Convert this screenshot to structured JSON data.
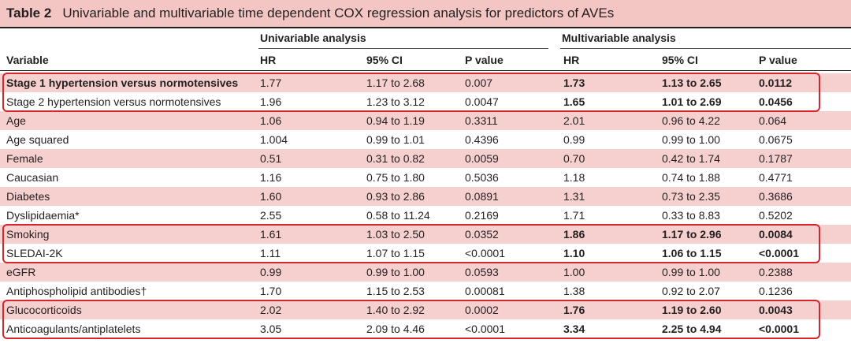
{
  "table": {
    "number": "Table 2",
    "caption": "Univariable and multivariable time dependent COX regression analysis for predictors of AVEs",
    "group_headers": {
      "univariable": "Univariable analysis",
      "multivariable": "Multivariable analysis"
    },
    "col_headers": {
      "variable": "Variable",
      "hr": "HR",
      "ci": "95% CI",
      "p": "P value"
    },
    "rows": [
      {
        "variable": "Stage 1 hypertension versus normotensives",
        "u_hr": "1.77",
        "u_ci": "1.17 to 2.68",
        "u_p": "0.007",
        "m_hr": "1.73",
        "m_ci": "1.13 to 2.65",
        "m_p": "0.0112",
        "bold_var": true,
        "bold_multi": true
      },
      {
        "variable": "Stage 2 hypertension versus normotensives",
        "u_hr": "1.96",
        "u_ci": "1.23 to 3.12",
        "u_p": "0.0047",
        "m_hr": "1.65",
        "m_ci": "1.01 to 2.69",
        "m_p": "0.0456",
        "bold_var": false,
        "bold_multi": true
      },
      {
        "variable": "Age",
        "u_hr": "1.06",
        "u_ci": "0.94 to 1.19",
        "u_p": "0.3311",
        "m_hr": "2.01",
        "m_ci": "0.96 to 4.22",
        "m_p": "0.064",
        "bold_var": false,
        "bold_multi": false
      },
      {
        "variable": "Age squared",
        "u_hr": "1.004",
        "u_ci": "0.99 to 1.01",
        "u_p": "0.4396",
        "m_hr": "0.99",
        "m_ci": "0.99 to 1.00",
        "m_p": "0.0675",
        "bold_var": false,
        "bold_multi": false
      },
      {
        "variable": "Female",
        "u_hr": "0.51",
        "u_ci": "0.31 to 0.82",
        "u_p": "0.0059",
        "m_hr": "0.70",
        "m_ci": "0.42 to 1.74",
        "m_p": "0.1787",
        "bold_var": false,
        "bold_multi": false
      },
      {
        "variable": "Caucasian",
        "u_hr": "1.16",
        "u_ci": "0.75 to 1.80",
        "u_p": "0.5036",
        "m_hr": "1.18",
        "m_ci": "0.74 to 1.88",
        "m_p": "0.4771",
        "bold_var": false,
        "bold_multi": false
      },
      {
        "variable": "Diabetes",
        "u_hr": "1.60",
        "u_ci": "0.93 to 2.86",
        "u_p": "0.0891",
        "m_hr": "1.31",
        "m_ci": "0.73 to 2.35",
        "m_p": "0.3686",
        "bold_var": false,
        "bold_multi": false
      },
      {
        "variable": "Dyslipidaemia*",
        "u_hr": "2.55",
        "u_ci": "0.58 to 11.24",
        "u_p": "0.2169",
        "m_hr": "1.71",
        "m_ci": "0.33 to 8.83",
        "m_p": "0.5202",
        "bold_var": false,
        "bold_multi": false
      },
      {
        "variable": "Smoking",
        "u_hr": "1.61",
        "u_ci": "1.03 to 2.50",
        "u_p": "0.0352",
        "m_hr": "1.86",
        "m_ci": "1.17 to 2.96",
        "m_p": "0.0084",
        "bold_var": false,
        "bold_multi": true
      },
      {
        "variable": "SLEDAI-2K",
        "u_hr": "1.11",
        "u_ci": "1.07 to 1.15",
        "u_p": "<0.0001",
        "m_hr": "1.10",
        "m_ci": "1.06 to 1.15",
        "m_p": "<0.0001",
        "bold_var": false,
        "bold_multi": true
      },
      {
        "variable": "eGFR",
        "u_hr": "0.99",
        "u_ci": "0.99 to 1.00",
        "u_p": "0.0593",
        "m_hr": "1.00",
        "m_ci": "0.99 to 1.00",
        "m_p": "0.2388",
        "bold_var": false,
        "bold_multi": false
      },
      {
        "variable": "Antiphospholipid antibodies†",
        "u_hr": "1.70",
        "u_ci": "1.15 to 2.53",
        "u_p": "0.00081",
        "m_hr": "1.38",
        "m_ci": "0.92 to 2.07",
        "m_p": "0.1236",
        "bold_var": false,
        "bold_multi": false
      },
      {
        "variable": "Glucocorticoids",
        "u_hr": "2.02",
        "u_ci": "1.40 to 2.92",
        "u_p": "0.0002",
        "m_hr": "1.76",
        "m_ci": "1.19 to 2.60",
        "m_p": "0.0043",
        "bold_var": false,
        "bold_multi": true
      },
      {
        "variable": "Anticoagulants/antiplatelets",
        "u_hr": "3.05",
        "u_ci": "2.09 to 4.46",
        "u_p": "<0.0001",
        "m_hr": "3.34",
        "m_ci": "2.25 to 4.94",
        "m_p": "<0.0001",
        "bold_var": false,
        "bold_multi": true
      }
    ],
    "highlight_groups": [
      [
        0,
        1
      ],
      [
        8,
        9
      ],
      [
        12,
        13
      ]
    ],
    "colors": {
      "band": "#f6d0ce",
      "title_bg": "#f4c6c3",
      "highlight": "#d7262a",
      "text": "#231f20"
    }
  }
}
